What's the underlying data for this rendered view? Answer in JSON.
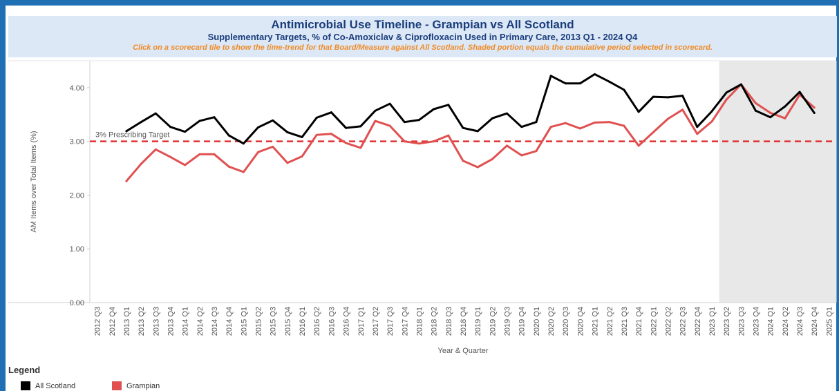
{
  "header": {
    "title": "Antimicrobial Use Timeline - Grampian vs All Scotland",
    "subtitle": "Supplementary Targets, % of Co-Amoxiclav & Ciprofloxacin Used in Primary Care, 2013 Q1 - 2024 Q4",
    "note": "Click on a scorecard tile to show the time-trend for that Board/Measure against All Scotland. Shaded portion equals the cumulative period selected in scorecard."
  },
  "legend": {
    "title": "Legend",
    "items": [
      {
        "label": "All Scotland",
        "color": "#000000"
      },
      {
        "label": "Grampian",
        "color": "#e05050"
      }
    ]
  },
  "chart_data": {
    "type": "line",
    "xlabel": "Year & Quarter",
    "ylabel": "AM Items over Total Items (%)",
    "ylim": [
      0,
      4.5
    ],
    "yticks": [
      "0.00",
      "1.00",
      "2.00",
      "3.00",
      "4.00"
    ],
    "yticks_values": [
      0,
      1,
      2,
      3,
      4
    ],
    "categories": [
      "2012 Q3",
      "2012 Q4",
      "2013 Q1",
      "2013 Q2",
      "2013 Q3",
      "2013 Q4",
      "2014 Q1",
      "2014 Q2",
      "2014 Q3",
      "2014 Q4",
      "2015 Q1",
      "2015 Q2",
      "2015 Q3",
      "2015 Q4",
      "2016 Q1",
      "2016 Q2",
      "2016 Q3",
      "2016 Q4",
      "2017 Q1",
      "2017 Q2",
      "2017 Q3",
      "2017 Q4",
      "2018 Q1",
      "2018 Q2",
      "2018 Q3",
      "2018 Q4",
      "2019 Q1",
      "2019 Q2",
      "2019 Q3",
      "2019 Q4",
      "2020 Q1",
      "2020 Q2",
      "2020 Q3",
      "2020 Q4",
      "2021 Q1",
      "2021 Q2",
      "2021 Q3",
      "2021 Q4",
      "2022 Q1",
      "2022 Q2",
      "2022 Q3",
      "2022 Q4",
      "2023 Q1",
      "2023 Q2",
      "2023 Q3",
      "2023 Q4",
      "2024 Q1",
      "2024 Q2",
      "2024 Q3",
      "2024 Q4",
      "2025 Q1"
    ],
    "series": [
      {
        "name": "All Scotland",
        "color": "#000000",
        "values": [
          null,
          null,
          3.19,
          3.36,
          3.52,
          3.27,
          3.18,
          3.38,
          3.45,
          3.11,
          2.96,
          3.26,
          3.39,
          3.17,
          3.08,
          3.44,
          3.54,
          3.25,
          3.28,
          3.57,
          3.7,
          3.36,
          3.4,
          3.6,
          3.68,
          3.25,
          3.19,
          3.43,
          3.52,
          3.27,
          3.36,
          4.22,
          4.08,
          4.08,
          4.25,
          4.11,
          3.96,
          3.55,
          3.83,
          3.82,
          3.85,
          3.27,
          3.56,
          3.91,
          4.06,
          3.57,
          3.45,
          3.65,
          3.92,
          3.53,
          null
        ]
      },
      {
        "name": "Grampian",
        "color": "#e05050",
        "values": [
          null,
          null,
          2.26,
          2.58,
          2.85,
          2.71,
          2.56,
          2.76,
          2.76,
          2.53,
          2.43,
          2.8,
          2.9,
          2.6,
          2.72,
          3.12,
          3.14,
          2.97,
          2.88,
          3.38,
          3.29,
          3.0,
          2.96,
          3.0,
          3.11,
          2.64,
          2.52,
          2.67,
          2.92,
          2.74,
          2.82,
          3.27,
          3.34,
          3.24,
          3.35,
          3.36,
          3.29,
          2.92,
          3.17,
          3.42,
          3.59,
          3.14,
          3.37,
          3.78,
          4.06,
          3.71,
          3.53,
          3.43,
          3.87,
          3.63,
          null
        ]
      }
    ],
    "target": {
      "value": 3.0,
      "label": "3% Prescribing Target",
      "color": "#e03030"
    },
    "shaded_range": [
      "2023 Q2",
      "2025 Q1"
    ],
    "grid": false
  }
}
